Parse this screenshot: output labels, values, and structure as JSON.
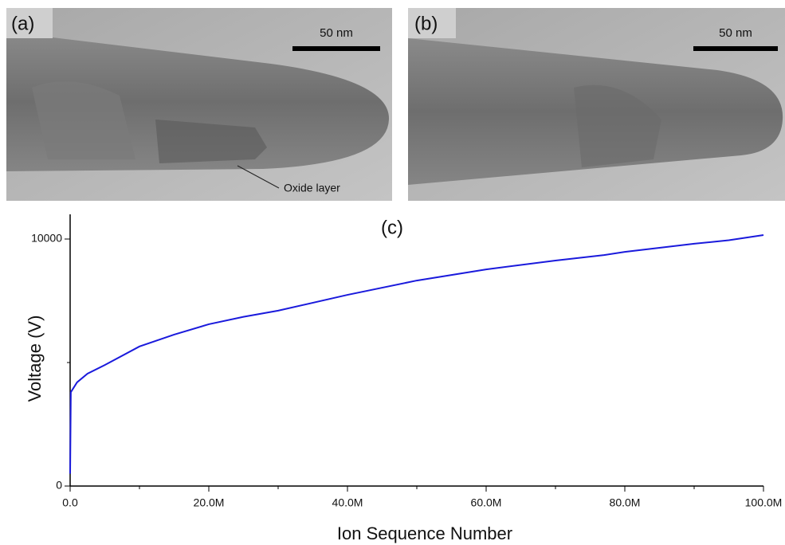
{
  "images": [
    {
      "label": "(a)",
      "scale": "50 nm",
      "annotation": "Oxide layer"
    },
    {
      "label": "(b)",
      "scale": "50 nm"
    }
  ],
  "chart_data": {
    "type": "line",
    "title": "(c)",
    "x_label": "Ion Sequence Number",
    "y_label": "Voltage (V)",
    "xlim": [
      0,
      100000000
    ],
    "ylim": [
      0,
      11000
    ],
    "xticks": [
      {
        "value": 0,
        "label": "0.0"
      },
      {
        "value": 20000000,
        "label": "20.0M"
      },
      {
        "value": 40000000,
        "label": "40.0M"
      },
      {
        "value": 60000000,
        "label": "60.0M"
      },
      {
        "value": 80000000,
        "label": "80.0M"
      },
      {
        "value": 100000000,
        "label": "100.0M"
      }
    ],
    "xminor_ticks": [
      10000000,
      30000000,
      50000000,
      70000000,
      90000000
    ],
    "yticks": [
      0,
      10000
    ],
    "yminor_ticks": [
      5000
    ],
    "series": [
      {
        "color": "#1a1adc",
        "x": [
          0,
          100000,
          1000000,
          2500000,
          5000000,
          10000000,
          15000000,
          20000000,
          25000000,
          30000000,
          40000000,
          50000000,
          60000000,
          70000000,
          77000000,
          80000000,
          90000000,
          95000000,
          100000000
        ],
        "values": [
          500,
          3800,
          4200,
          4550,
          4900,
          5650,
          6130,
          6550,
          6850,
          7100,
          7740,
          8320,
          8770,
          9130,
          9350,
          9480,
          9810,
          9950,
          10160
        ]
      }
    ]
  }
}
